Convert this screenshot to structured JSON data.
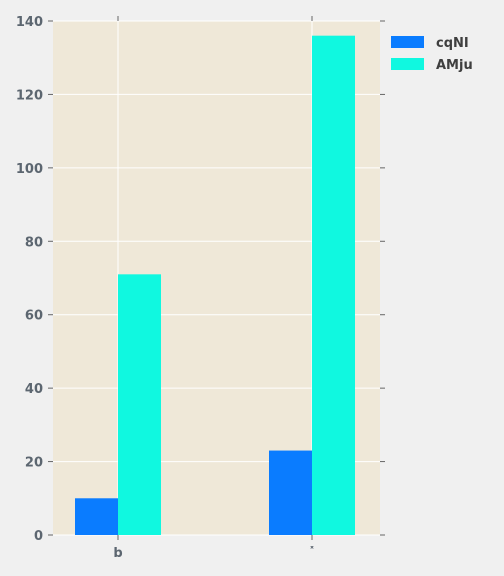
{
  "chart_data": {
    "type": "bar",
    "title": "",
    "xlabel": "",
    "ylabel": "",
    "categories": [
      "b",
      "˟"
    ],
    "series": [
      {
        "name": "cqNI",
        "values": [
          10,
          23
        ]
      },
      {
        "name": "AMju",
        "values": [
          71,
          136
        ]
      }
    ],
    "ylim": [
      0,
      140
    ],
    "yticks": [
      "0",
      "20",
      "40",
      "60",
      "80",
      "100",
      "120",
      "140"
    ],
    "grid": true,
    "legend_position": "top-right, outside plot",
    "colors": {
      "cqNI": "#0a7cff",
      "AMju": "#10f8e0",
      "plot_background": "#efe8d8",
      "figure_background": "#f0f0f0",
      "grid": "#ffffff",
      "tick_text": "#5c6670"
    }
  }
}
